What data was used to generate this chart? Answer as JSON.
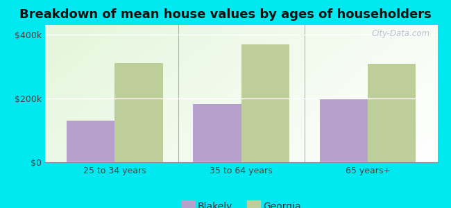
{
  "title": "Breakdown of mean house values by ages of householders",
  "categories": [
    "25 to 34 years",
    "35 to 64 years",
    "65 years+"
  ],
  "blakely_values": [
    130000,
    183000,
    198000
  ],
  "georgia_values": [
    310000,
    370000,
    308000
  ],
  "blakely_color": "#b8a0cc",
  "georgia_color": "#bece9a",
  "background_color": "#00e8f0",
  "yticks": [
    0,
    200000,
    400000
  ],
  "ytick_labels": [
    "$0",
    "$200k",
    "$400k"
  ],
  "ylim": [
    0,
    430000
  ],
  "title_fontsize": 13,
  "legend_labels": [
    "Blakely",
    "Georgia"
  ],
  "bar_width": 0.38,
  "watermark": "City-Data.com"
}
